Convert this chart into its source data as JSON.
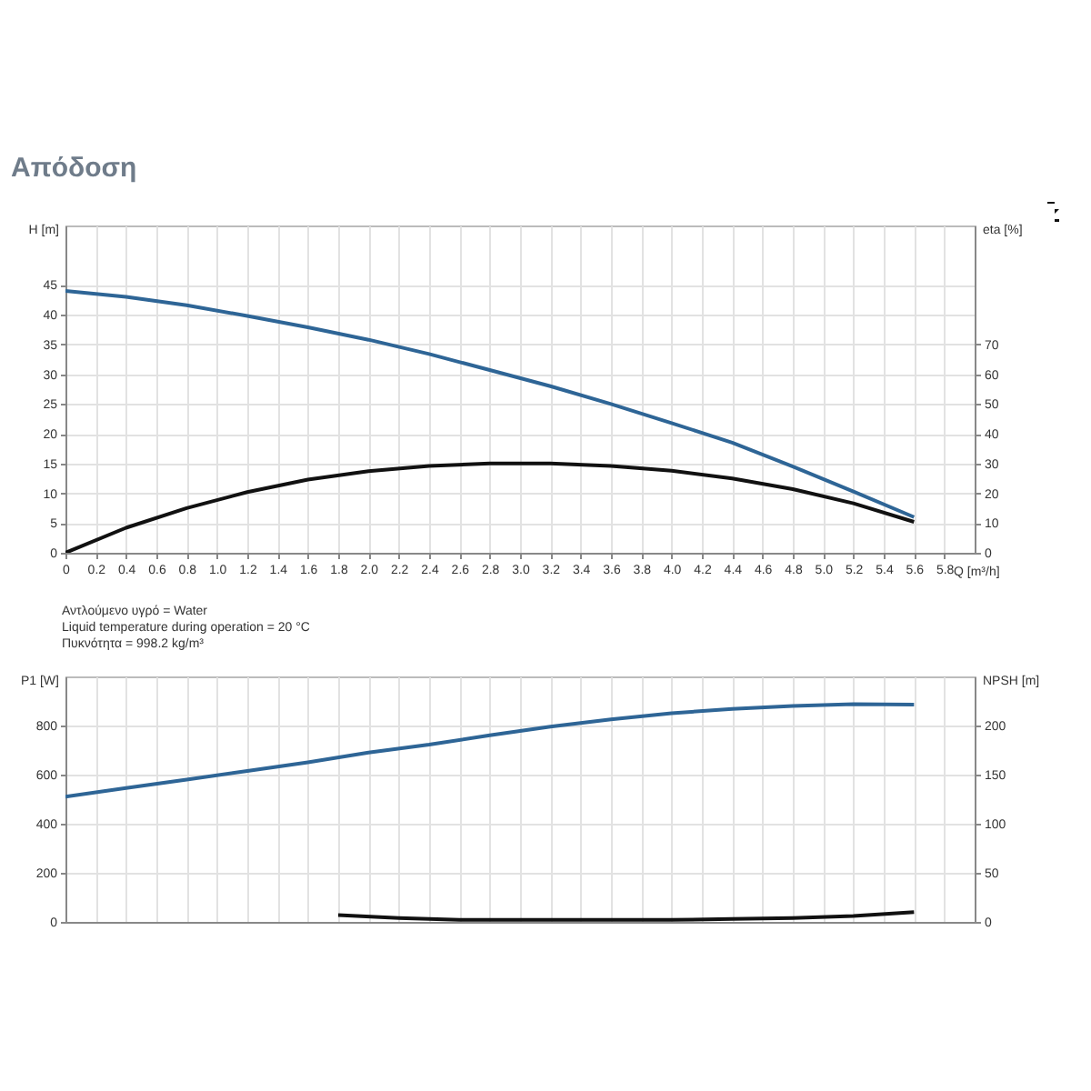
{
  "chart_data": [
    {
      "type": "line",
      "title": "Απόδοση",
      "xlabel": "Q [m³/h]",
      "ylabel": "H [m]",
      "y2label": "eta [%]",
      "grid": true,
      "annotations": [
        "Αντλούμενο υγρό = Water",
        "Liquid temperature during operation = 20 °C",
        "Πυκνότητα = 998.2 kg/m³"
      ],
      "x": [
        0,
        0.4,
        0.8,
        1.2,
        1.6,
        2.0,
        2.4,
        2.8,
        3.2,
        3.6,
        4.0,
        4.4,
        4.8,
        5.2,
        5.6
      ],
      "xlim": [
        0,
        6
      ],
      "xticks": [
        0,
        0.2,
        0.4,
        0.6,
        0.8,
        {
          "value": 1,
          "label": "1.0"
        },
        1.2,
        1.4,
        1.6,
        1.8,
        {
          "value": 2,
          "label": "2.0"
        },
        2.2,
        2.4,
        2.6,
        2.8,
        {
          "value": 3,
          "label": "3.0"
        },
        3.2,
        3.4,
        3.6,
        3.8,
        {
          "value": 4,
          "label": "4.0"
        },
        4.2,
        4.4,
        4.6,
        4.8,
        {
          "value": 5,
          "label": "5.0"
        },
        5.2,
        5.4,
        5.6,
        5.8
      ],
      "ylim": [
        0,
        55
      ],
      "yticks": [
        0,
        5,
        10,
        15,
        20,
        25,
        30,
        35,
        40,
        45
      ],
      "y2lim": [
        0,
        110
      ],
      "y2ticks": [
        0,
        10,
        20,
        30,
        40,
        50,
        60,
        70
      ],
      "series": [
        {
          "color": "#2e6596",
          "values": [
            44,
            43,
            41.6,
            39.8,
            37.9,
            35.8,
            33.4,
            30.7,
            28,
            25,
            21.8,
            18.5,
            14.5,
            10.3,
            6
          ]
        },
        {
          "color": "#111111",
          "axis": "y2",
          "values": [
            0,
            8.4,
            15,
            20.4,
            24.6,
            27.4,
            29.2,
            30,
            30,
            29.2,
            27.6,
            25,
            21.4,
            16.6,
            10.4
          ]
        }
      ]
    },
    {
      "type": "line",
      "ylabel": "P1 [W]",
      "y2label": "NPSH [m]",
      "grid": true,
      "tick_labels": "y",
      "x": [
        0,
        0.4,
        0.8,
        1.2,
        1.6,
        2.0,
        2.4,
        2.8,
        3.2,
        3.6,
        4.0,
        4.4,
        4.8,
        5.2,
        5.6
      ],
      "xlim": [
        0,
        6
      ],
      "xticks": [
        0,
        0.2,
        0.4,
        0.6,
        0.8,
        1.0,
        1.2,
        1.4,
        1.6,
        1.8,
        2.0,
        2.2,
        2.4,
        2.6,
        2.8,
        3.0,
        3.2,
        3.4,
        3.6,
        3.8,
        4.0,
        4.2,
        4.4,
        4.6,
        4.8,
        5.0,
        5.2,
        5.4,
        5.6,
        5.8
      ],
      "ylim": [
        0,
        1000
      ],
      "yticks": [
        0,
        200,
        400,
        600,
        800
      ],
      "y2lim": [
        0,
        250
      ],
      "y2ticks": [
        0,
        50,
        100,
        150,
        200
      ],
      "series": [
        {
          "color": "#2e6596",
          "values": [
            510,
            545,
            580,
            615,
            650,
            690,
            722,
            760,
            795,
            825,
            850,
            868,
            880,
            887,
            885
          ]
        },
        {
          "color": "#111111",
          "axis": "y2",
          "x": [
            1.8,
            2.2,
            2.6,
            3.0,
            3.6,
            4.0,
            4.4,
            4.8,
            5.2,
            5.6
          ],
          "values": [
            7,
            4,
            2,
            2,
            2,
            2,
            3,
            4,
            6,
            10
          ]
        }
      ]
    }
  ]
}
